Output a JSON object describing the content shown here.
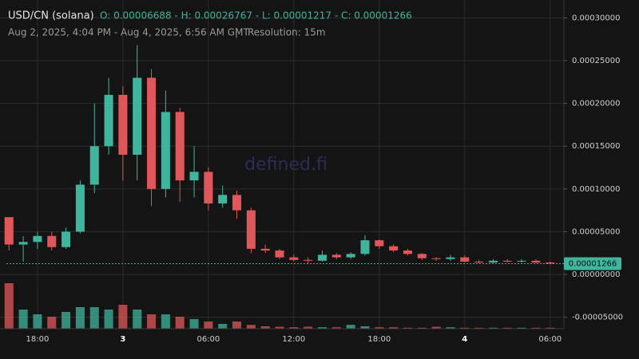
{
  "chart_data": {
    "type": "candlestick",
    "title": "USD/CN (solana)",
    "ohlc_text": "O: 0.00006688 - H: 0.00026767 - L: 0.00001217 - C: 0.00001266",
    "subtitle": "Aug 2, 2025, 4:04 PM - Aug 4, 2025, 6:56 AM GMT",
    "separator": "|",
    "resolution": "Resolution: 15m",
    "watermark": "defined.fi",
    "up_color": "#3fb59d",
    "down_color": "#e0575b",
    "grid": true,
    "x": [
      "2025-08-02 16:00",
      "2025-08-02 17:00",
      "2025-08-02 18:00",
      "2025-08-02 19:00",
      "2025-08-02 20:00",
      "2025-08-02 21:00",
      "2025-08-02 22:00",
      "2025-08-02 23:00",
      "2025-08-03 00:00",
      "2025-08-03 01:00",
      "2025-08-03 02:00",
      "2025-08-03 03:00",
      "2025-08-03 04:00",
      "2025-08-03 05:00",
      "2025-08-03 06:00",
      "2025-08-03 07:00",
      "2025-08-03 08:00",
      "2025-08-03 09:00",
      "2025-08-03 10:00",
      "2025-08-03 11:00",
      "2025-08-03 12:00",
      "2025-08-03 13:00",
      "2025-08-03 14:00",
      "2025-08-03 15:00",
      "2025-08-03 16:00",
      "2025-08-03 17:00",
      "2025-08-03 18:00",
      "2025-08-03 19:00",
      "2025-08-03 20:00",
      "2025-08-03 21:00",
      "2025-08-03 22:00",
      "2025-08-03 23:00",
      "2025-08-04 00:00",
      "2025-08-04 01:00",
      "2025-08-04 02:00",
      "2025-08-04 03:00",
      "2025-08-04 04:00",
      "2025-08-04 05:00",
      "2025-08-04 06:00"
    ],
    "open": [
      6.7e-05,
      3.5e-05,
      3.8e-05,
      4.5e-05,
      3.2e-05,
      5e-05,
      0.000105,
      0.00015,
      0.00021,
      0.00014,
      0.00023,
      0.0001,
      0.00019,
      0.00011,
      0.00012,
      8.3e-05,
      9.3e-05,
      7.5e-05,
      3e-05,
      2.8e-05,
      2e-05,
      1.7e-05,
      1.6e-05,
      2.3e-05,
      2e-05,
      2.4e-05,
      4e-05,
      3.3e-05,
      2.8e-05,
      2.4e-05,
      1.9e-05,
      1.8e-05,
      2e-05,
      1.5e-05,
      1.4e-05,
      1.6e-05,
      1.5e-05,
      1.6e-05,
      1.4e-05
    ],
    "high": [
      6.7e-05,
      4.5e-05,
      5e-05,
      5e-05,
      5.5e-05,
      0.00011,
      0.0002,
      0.00023,
      0.00022,
      0.000268,
      0.00024,
      0.000215,
      0.000195,
      0.00015,
      0.000125,
      0.000104,
      9.8e-05,
      7.8e-05,
      3.5e-05,
      3e-05,
      2.3e-05,
      2e-05,
      2.8e-05,
      2.5e-05,
      2.6e-05,
      4.6e-05,
      4.1e-05,
      3.5e-05,
      3e-05,
      2.5e-05,
      2e-05,
      2.3e-05,
      2.2e-05,
      1.7e-05,
      1.8e-05,
      1.8e-05,
      1.8e-05,
      1.8e-05,
      1.5e-05
    ],
    "low": [
      2.8e-05,
      1.5e-05,
      3e-05,
      2.8e-05,
      3e-05,
      4.8e-05,
      9.5e-05,
      0.00014,
      0.00011,
      0.00011,
      8e-05,
      9e-05,
      8.5e-05,
      9e-05,
      7.5e-05,
      7.8e-05,
      6.5e-05,
      2.5e-05,
      2.5e-05,
      1.8e-05,
      1.5e-05,
      1.3e-05,
      1.5e-05,
      1.8e-05,
      1.8e-05,
      2.2e-05,
      3e-05,
      2.6e-05,
      2.2e-05,
      1.7e-05,
      1.6e-05,
      1.6e-05,
      1.4e-05,
      1.3e-05,
      1.3e-05,
      1.4e-05,
      1.4e-05,
      1.3e-05,
      1.2e-05
    ],
    "close": [
      3.5e-05,
      3.8e-05,
      4.5e-05,
      3.2e-05,
      5e-05,
      0.000105,
      0.00015,
      0.00021,
      0.00014,
      0.00023,
      0.0001,
      0.00019,
      0.00011,
      0.00012,
      8.3e-05,
      9.3e-05,
      7.5e-05,
      3e-05,
      2.8e-05,
      2e-05,
      1.7e-05,
      1.6e-05,
      2.3e-05,
      2e-05,
      2.4e-05,
      4e-05,
      3.3e-05,
      2.8e-05,
      2.4e-05,
      1.9e-05,
      1.8e-05,
      2e-05,
      1.5e-05,
      1.4e-05,
      1.6e-05,
      1.5e-05,
      1.6e-05,
      1.4e-05,
      1.266e-05
    ],
    "volume": [
      95,
      40,
      30,
      25,
      35,
      45,
      45,
      40,
      50,
      40,
      30,
      30,
      25,
      20,
      15,
      10,
      15,
      8,
      5,
      4,
      3,
      4,
      3,
      3,
      8,
      5,
      3,
      3,
      2,
      2,
      4,
      3,
      2,
      2,
      2,
      2,
      2,
      2,
      2
    ],
    "volume_lim": [
      0,
      100
    ],
    "xlim": [
      "2025-08-02 15:49",
      "2025-08-04 06:58"
    ],
    "xticks": [
      {
        "value": "2025-08-02 18:00",
        "label": "18:00"
      },
      {
        "value": "2025-08-03 00:00",
        "label": "3"
      },
      {
        "value": "2025-08-03 06:00",
        "label": "06:00"
      },
      {
        "value": "2025-08-03 12:00",
        "label": "12:00"
      },
      {
        "value": "2025-08-03 18:00",
        "label": "18:00"
      },
      {
        "value": "2025-08-04 00:00",
        "label": "4"
      },
      {
        "value": "2025-08-04 06:00",
        "label": "06:00"
      }
    ],
    "ylim": [
      -6.34e-05,
      0.0003116
    ],
    "yticks": [
      {
        "value": 0.0003,
        "label": "0.00030000"
      },
      {
        "value": 0.00025,
        "label": "0.00025000"
      },
      {
        "value": 0.0002,
        "label": "0.00020000"
      },
      {
        "value": 0.00015,
        "label": "0.00015000"
      },
      {
        "value": 0.0001,
        "label": "0.00010000"
      },
      {
        "value": 5e-05,
        "label": "0.00005000"
      },
      {
        "value": 0,
        "label": "0.00000000"
      },
      {
        "value": -5e-05,
        "label": "-0.00005000"
      }
    ],
    "last_price": {
      "value": 1.266e-05,
      "label": "0.00001266"
    }
  }
}
